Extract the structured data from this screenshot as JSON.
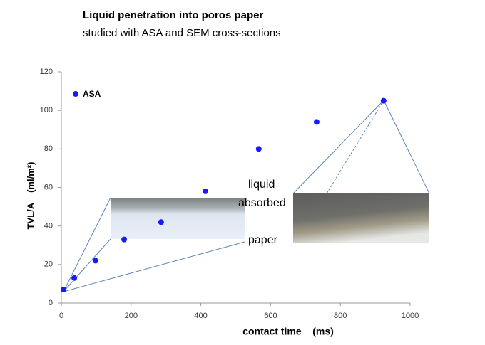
{
  "chart_data": {
    "type": "scatter",
    "title": "Liquid penetration into poros paper",
    "subtitle": "studied with ASA and SEM cross-sections",
    "xlabel": "contact time    (ms)",
    "ylabel": "TVL/A    (ml/m²)",
    "series": [
      {
        "name": "ASA",
        "color": "#1a1aff",
        "x": [
          6,
          37,
          98,
          180,
          286,
          413,
          566,
          732,
          924
        ],
        "values": [
          7,
          13,
          22,
          33,
          42,
          58,
          80,
          94,
          105
        ]
      }
    ],
    "xlim": [
      0,
      1000
    ],
    "xticks": [
      0,
      200,
      400,
      600,
      800,
      1000
    ],
    "ylim": [
      0,
      120
    ],
    "yticks": [
      0,
      20,
      40,
      60,
      80,
      100,
      120
    ],
    "grid": false,
    "annotations": [
      "liquid",
      "absorbed",
      "paper"
    ]
  }
}
